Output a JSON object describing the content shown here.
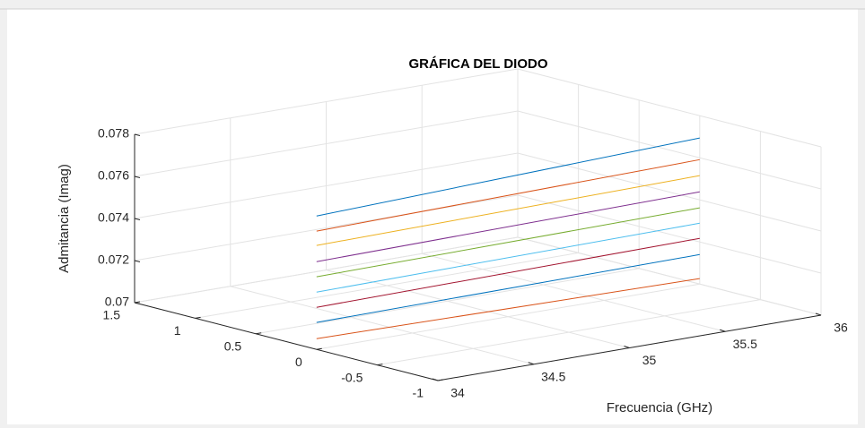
{
  "chart_data": {
    "type": "line3d",
    "title": "GRÁFICA DEL DIODO",
    "xlabel": "Frecuencia (GHz)",
    "zlabel": "Admitancia (Imag)",
    "x": [
      34,
      36
    ],
    "xlim": [
      34,
      36
    ],
    "xticks": [
      34,
      34.5,
      35,
      35.5,
      36
    ],
    "ylim": [
      -1,
      1.5
    ],
    "yticks": [
      -1,
      -0.5,
      0,
      0.5,
      1,
      1.5
    ],
    "zlim": [
      0.07,
      0.078
    ],
    "zticks": [
      0.07,
      0.072,
      0.074,
      0.076,
      0.078
    ],
    "grid": true,
    "series": [
      {
        "color": "#0072BD",
        "y": [
          0,
          0
        ],
        "z": [
          0.07634,
          0.07694
        ]
      },
      {
        "color": "#D95319",
        "y": [
          0,
          0
        ],
        "z": [
          0.07562,
          0.07591
        ]
      },
      {
        "color": "#EDB120",
        "y": [
          0,
          0
        ],
        "z": [
          0.07494,
          0.07515
        ]
      },
      {
        "color": "#7E2F8E",
        "y": [
          0,
          0
        ],
        "z": [
          0.07417,
          0.07438
        ]
      },
      {
        "color": "#77AC30",
        "y": [
          0,
          0
        ],
        "z": [
          0.07345,
          0.07362
        ]
      },
      {
        "color": "#4DBEEE",
        "y": [
          0,
          0
        ],
        "z": [
          0.07272,
          0.07289
        ]
      },
      {
        "color": "#A2142F",
        "y": [
          0,
          0
        ],
        "z": [
          0.072,
          0.07217
        ]
      },
      {
        "color": "#0072BD",
        "y": [
          0,
          0
        ],
        "z": [
          0.07128,
          0.0714
        ]
      },
      {
        "color": "#D95319",
        "y": [
          0,
          0
        ],
        "z": [
          0.07051,
          0.07026
        ]
      }
    ]
  }
}
